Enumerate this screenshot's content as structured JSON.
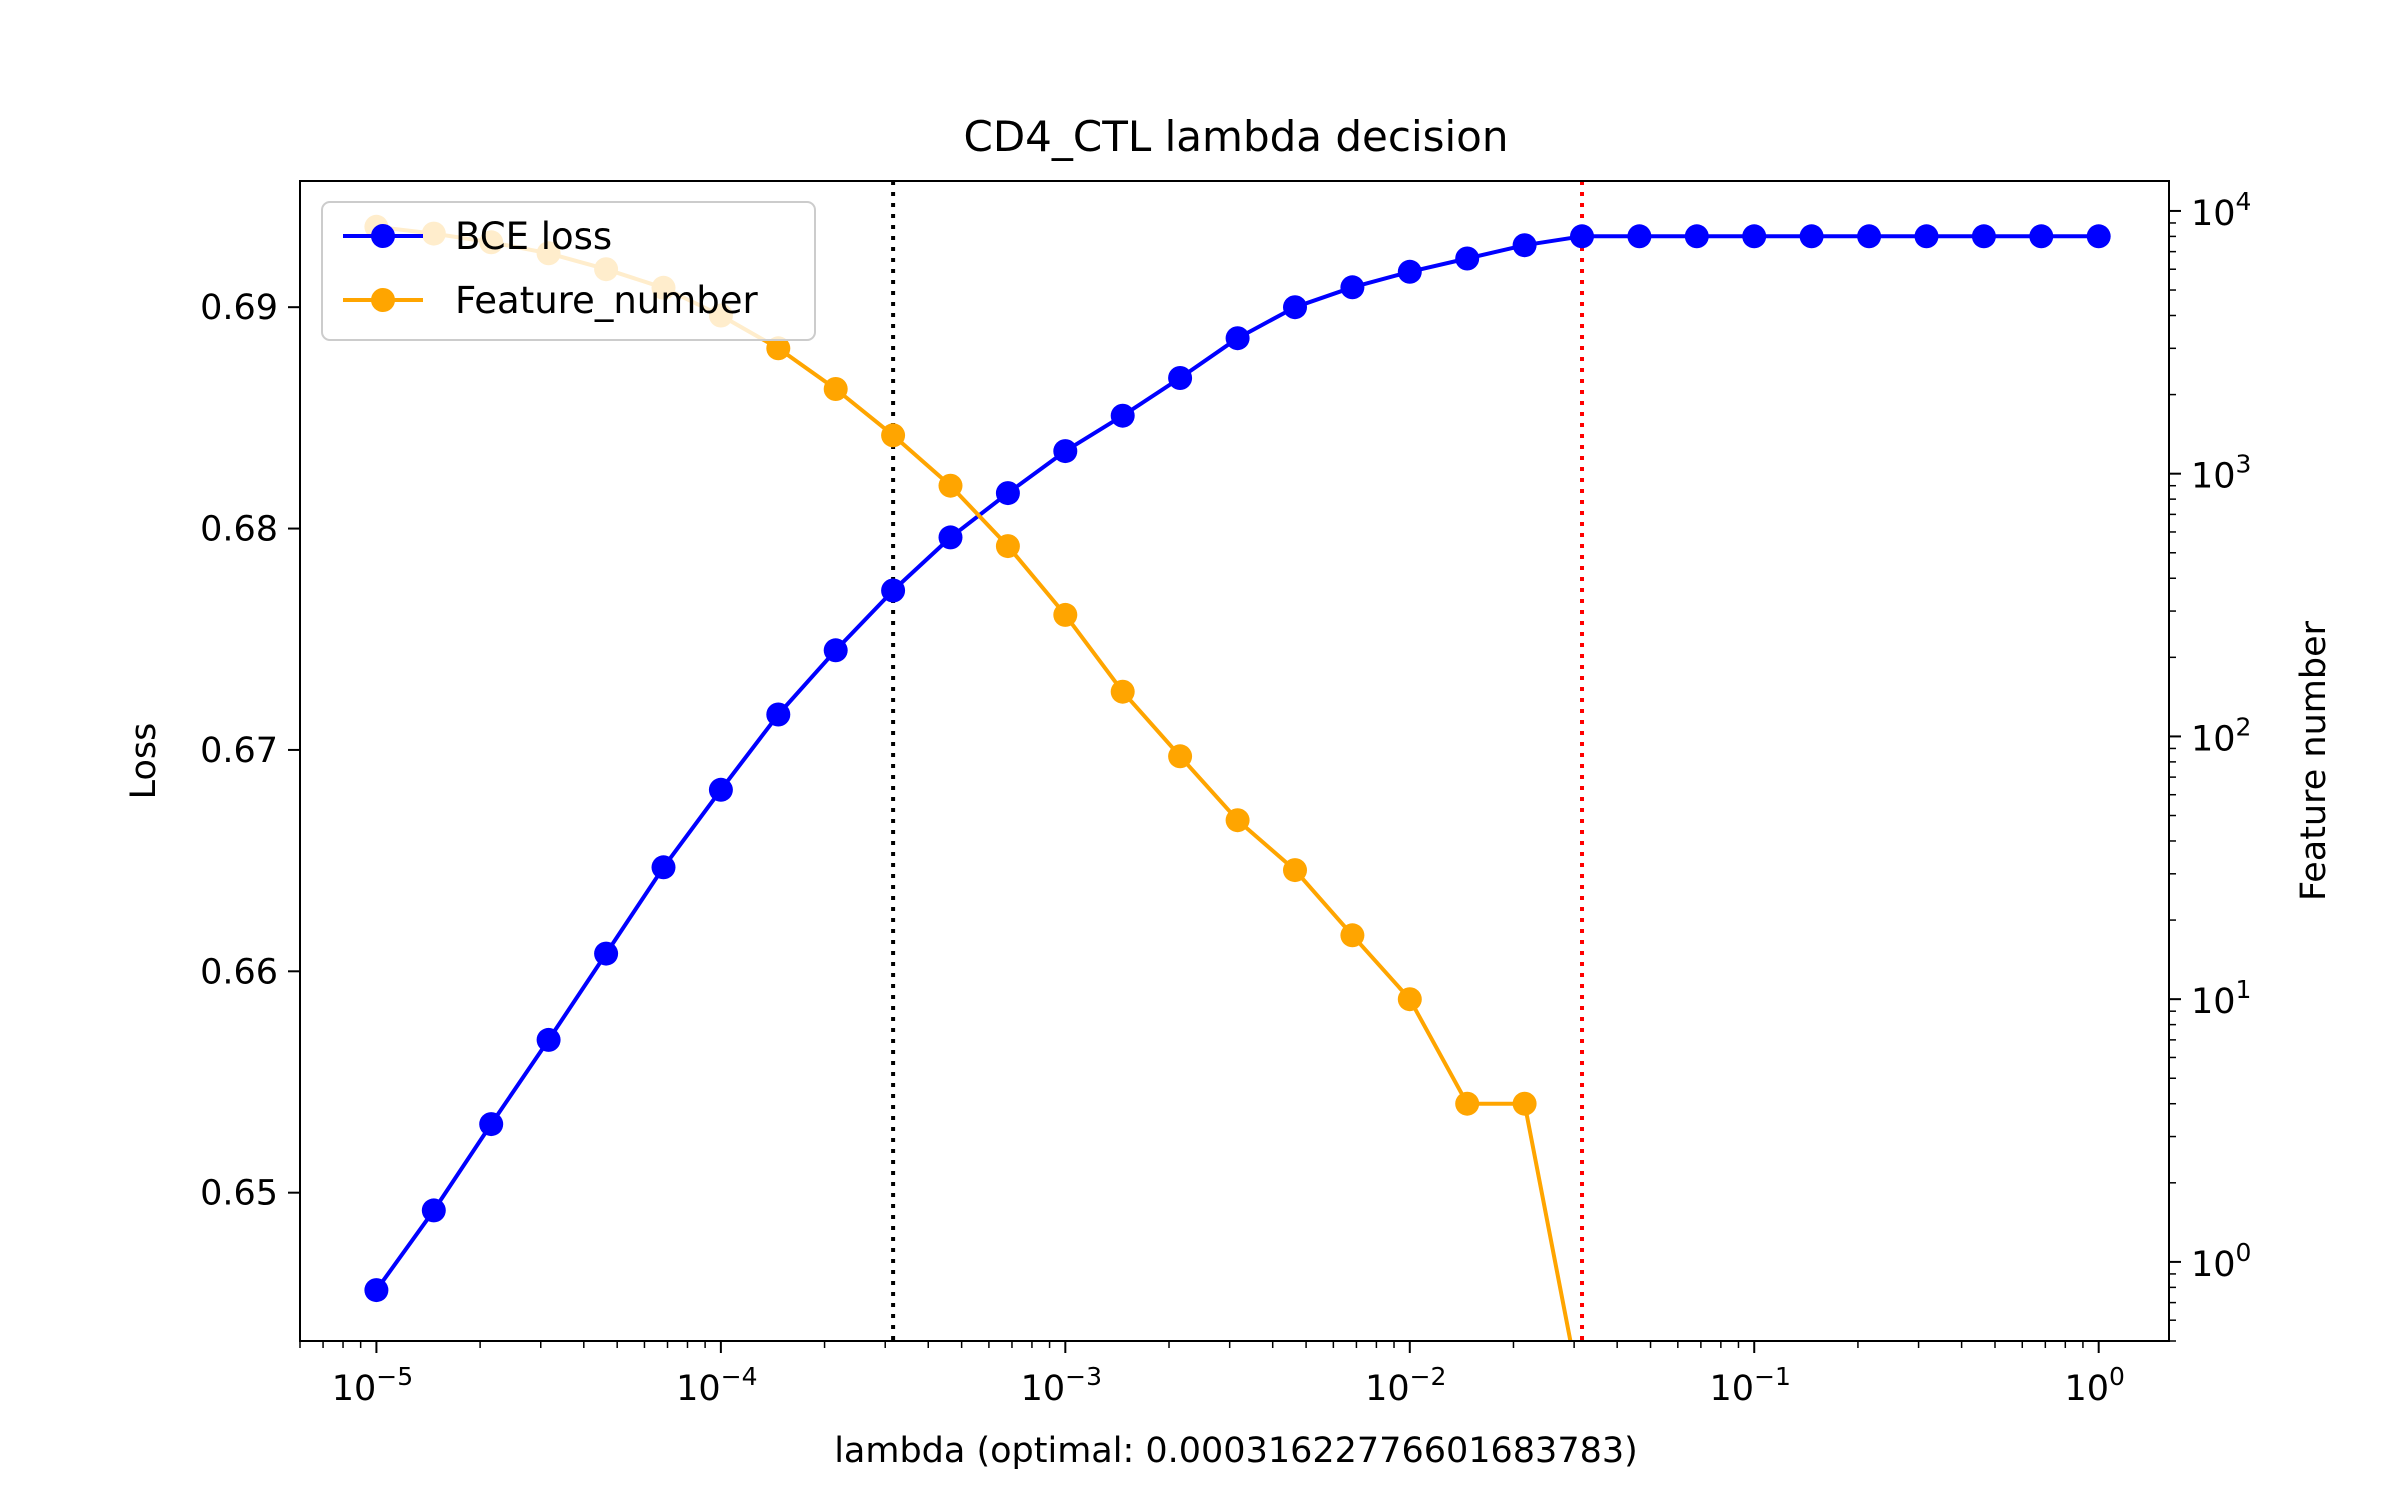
{
  "chart_data": {
    "type": "line",
    "title": "CD4_CTL lambda decision",
    "xlabel": "lambda (optimal: 0.00031622776601683783)",
    "ylabel": "Loss",
    "y2label": "Feature number",
    "xscale": "log",
    "y2scale": "log",
    "xlim": [
      6e-06,
      1.6
    ],
    "ylim": [
      0.6433,
      0.6957
    ],
    "y2lim": [
      0.5,
      13000
    ],
    "grid": false,
    "legend_position": "top-left",
    "x_ticks": [
      {
        "value": 1e-05,
        "base": "10",
        "exp": "−5"
      },
      {
        "value": 0.0001,
        "base": "10",
        "exp": "−4"
      },
      {
        "value": 0.001,
        "base": "10",
        "exp": "−3"
      },
      {
        "value": 0.01,
        "base": "10",
        "exp": "−2"
      },
      {
        "value": 0.1,
        "base": "10",
        "exp": "−1"
      },
      {
        "value": 1,
        "base": "10",
        "exp": "0"
      }
    ],
    "y_ticks": [
      "0.65",
      "0.66",
      "0.67",
      "0.68",
      "0.69"
    ],
    "y2_ticks": [
      {
        "value": 1,
        "base": "10",
        "exp": "0"
      },
      {
        "value": 10,
        "base": "10",
        "exp": "1"
      },
      {
        "value": 100,
        "base": "10",
        "exp": "2"
      },
      {
        "value": 1000,
        "base": "10",
        "exp": "3"
      },
      {
        "value": 10000,
        "base": "10",
        "exp": "4"
      }
    ],
    "x": [
      1e-05,
      1.4678e-05,
      2.1544e-05,
      3.1623e-05,
      4.6416e-05,
      6.8129e-05,
      0.0001,
      0.00014678,
      0.00021544,
      0.00031623,
      0.00046416,
      0.00068129,
      0.001,
      0.0014678,
      0.0021544,
      0.0031623,
      0.0046416,
      0.0068129,
      0.01,
      0.014678,
      0.021544,
      0.031623,
      0.046416,
      0.068129,
      0.1,
      0.14678,
      0.21544,
      0.31623,
      0.46416,
      0.68129,
      1
    ],
    "series": [
      {
        "name": "BCE loss",
        "color": "#0000ff",
        "axis": "left",
        "values": [
          0.6456,
          0.6492,
          0.6531,
          0.6569,
          0.6608,
          0.6647,
          0.6682,
          0.6716,
          0.6745,
          0.6772,
          0.6796,
          0.6816,
          0.6835,
          0.6851,
          0.6868,
          0.6886,
          0.69,
          0.6909,
          0.6916,
          0.6922,
          0.6928,
          0.6932,
          0.6932,
          0.6932,
          0.6932,
          0.6932,
          0.6932,
          0.6932,
          0.6932,
          0.6932,
          0.6932
        ]
      },
      {
        "name": "Feature_number",
        "color": "#ffa500",
        "axis": "right",
        "values": [
          8700,
          8200,
          7600,
          6900,
          6000,
          5100,
          4000,
          3000,
          2100,
          1400,
          900,
          530,
          290,
          148,
          84,
          48,
          31,
          17.5,
          10,
          4,
          4,
          0,
          null,
          null,
          null,
          null,
          null,
          null,
          null,
          null,
          null
        ]
      }
    ],
    "vlines": [
      {
        "x": 0.00031623,
        "color": "#000000",
        "style": "dotted"
      },
      {
        "x": 0.031623,
        "color": "#ff0000",
        "style": "dotted"
      }
    ]
  }
}
